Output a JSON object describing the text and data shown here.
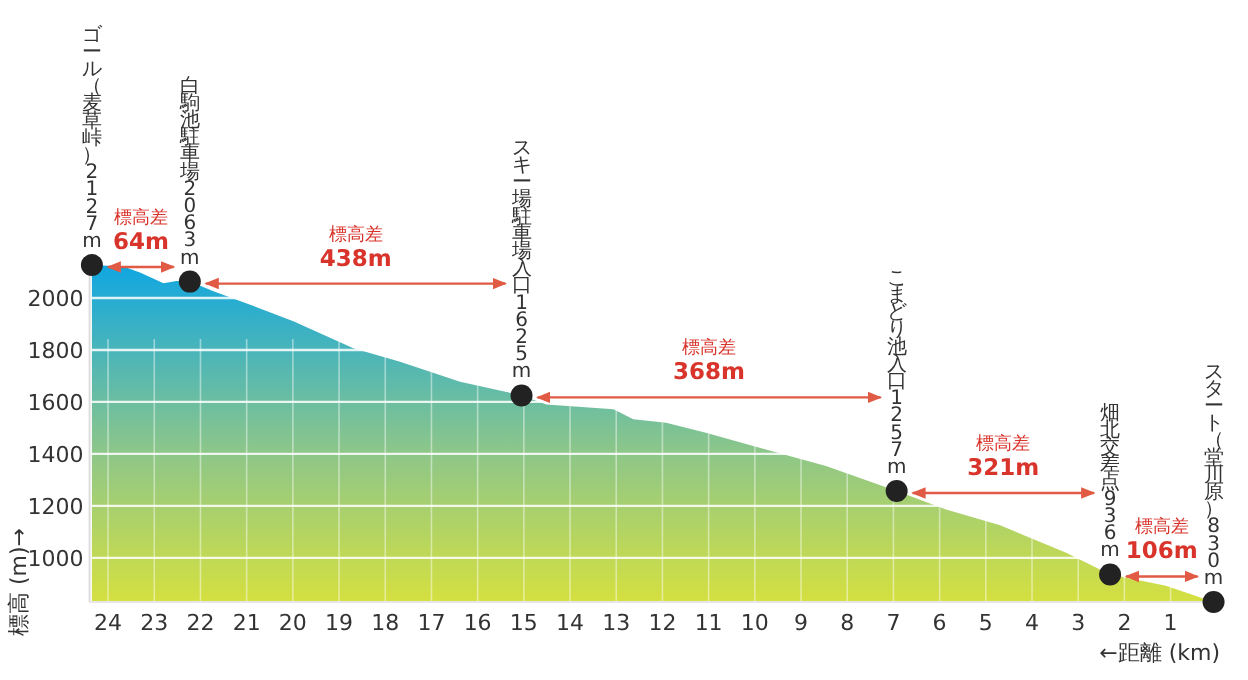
{
  "chart_data": {
    "type": "area",
    "xlabel": "←距離 (km)",
    "ylabel": "標高 (m)→",
    "xlim": [
      24.4,
      0
    ],
    "ylim": [
      830,
      2150
    ],
    "xticks": [
      24,
      23,
      22,
      21,
      20,
      19,
      18,
      17,
      16,
      15,
      14,
      13,
      12,
      11,
      10,
      9,
      8,
      7,
      6,
      5,
      4,
      3,
      2,
      1
    ],
    "yticks": [
      1000,
      1200,
      1400,
      1600,
      1800,
      2000
    ],
    "grid": true,
    "series": [
      {
        "color": "#10a6e2",
        "x": [
          24.35,
          23.67,
          23.31,
          22.8,
          22.52,
          22.23,
          21.72,
          20.85,
          19.99,
          18.69,
          17.68,
          16.38,
          15.05,
          14.51,
          13.06,
          12.63,
          11.92,
          11.06,
          9.76,
          8.46,
          6.93,
          5.86,
          4.69,
          3.26,
          2.31,
          1.1,
          0.07
        ],
        "values": [
          2127,
          2121,
          2098,
          2057,
          2065,
          2063,
          2026,
          1969,
          1910,
          1807,
          1755,
          1678,
          1625,
          1590,
          1572,
          1533,
          1520,
          1481,
          1417,
          1353,
          1257,
          1186,
          1125,
          1020,
          936,
          893,
          830
        ]
      },
      {
        "type": "scatter",
        "color": "#222222",
        "marker": "circle",
        "x": [
          24.35,
          22.23,
          15.05,
          6.93,
          2.31,
          0.07
        ],
        "values": [
          2127,
          2063,
          1625,
          1257,
          936,
          830
        ],
        "value_labels": [
          "ゴール（麦草峠）2127m",
          "白駒池駐車場2063m",
          "スキー場駐車場入口1625m",
          "こまどり池入口1257m",
          "畑北交差点936m",
          "スタート（堂川原）830m"
        ]
      }
    ],
    "annotations": [
      "$^{標高差}$64m",
      "$^{標高差}$438m",
      "$^{標高差}$368m",
      "$^{標高差}$321m",
      "$^{標高差}$106m"
    ]
  }
}
